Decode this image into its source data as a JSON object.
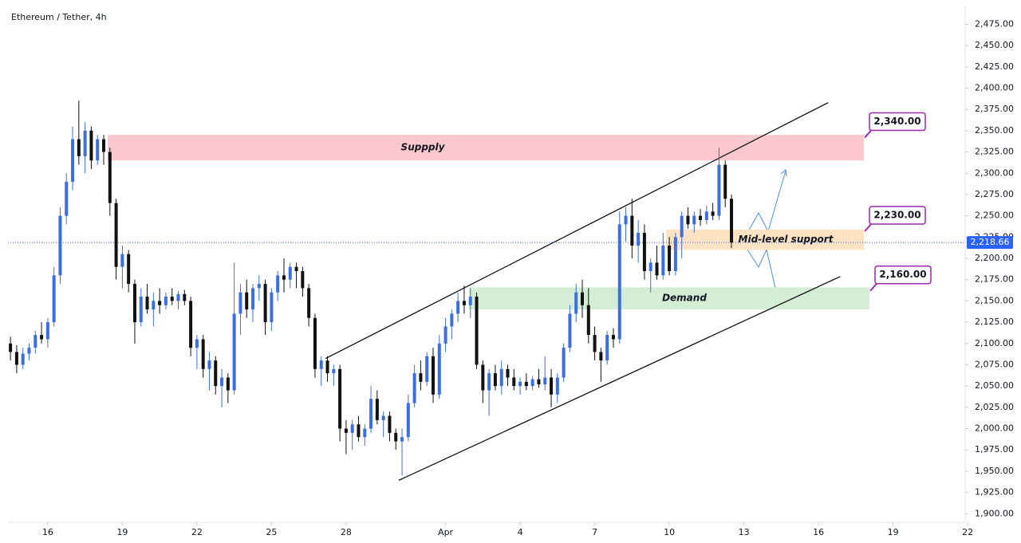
{
  "chart_data": {
    "type": "candlestick",
    "title": "Ethereum / Tether, 4h",
    "up_color": "#3b6fe0",
    "down_color": "#111111",
    "xlim": [
      14.4,
      52.9
    ],
    "ylim": [
      1890,
      2496
    ],
    "xticks": [
      {
        "value": 16,
        "label": "16"
      },
      {
        "value": 19,
        "label": "19"
      },
      {
        "value": 22,
        "label": "22"
      },
      {
        "value": 25,
        "label": "25"
      },
      {
        "value": 28,
        "label": "28"
      },
      {
        "value": 32,
        "label": "Apr"
      },
      {
        "value": 35,
        "label": "4"
      },
      {
        "value": 38,
        "label": "7"
      },
      {
        "value": 41,
        "label": "10"
      },
      {
        "value": 44,
        "label": "13"
      },
      {
        "value": 47,
        "label": "16"
      },
      {
        "value": 50,
        "label": "19"
      },
      {
        "value": 53,
        "label": "22"
      }
    ],
    "yticks": [
      {
        "value": 1900,
        "label": "1,900.00"
      },
      {
        "value": 1925,
        "label": "1,925.00"
      },
      {
        "value": 1950,
        "label": "1,950.00"
      },
      {
        "value": 1975,
        "label": "1,975.00"
      },
      {
        "value": 2000,
        "label": "2,000.00"
      },
      {
        "value": 2025,
        "label": "2,025.00"
      },
      {
        "value": 2050,
        "label": "2,050.00"
      },
      {
        "value": 2075,
        "label": "2,075.00"
      },
      {
        "value": 2100,
        "label": "2,100.00"
      },
      {
        "value": 2125,
        "label": "2,125.00"
      },
      {
        "value": 2150,
        "label": "2,150.00"
      },
      {
        "value": 2175,
        "label": "2,175.00"
      },
      {
        "value": 2200,
        "label": "2,200.00"
      },
      {
        "value": 2225,
        "label": "2,225.00"
      },
      {
        "value": 2250,
        "label": "2,250.00"
      },
      {
        "value": 2275,
        "label": "2,275.00"
      },
      {
        "value": 2300,
        "label": "2,300.00"
      },
      {
        "value": 2325,
        "label": "2,325.00"
      },
      {
        "value": 2350,
        "label": "2,350.00"
      },
      {
        "value": 2375,
        "label": "2,375.00"
      },
      {
        "value": 2400,
        "label": "2,400.00"
      },
      {
        "value": 2425,
        "label": "2,425.00"
      },
      {
        "value": 2450,
        "label": "2,450.00"
      },
      {
        "value": 2475,
        "label": "2,475.00"
      }
    ],
    "x": [
      14.5,
      14.75,
      15,
      15.25,
      15.5,
      15.75,
      16,
      16.25,
      16.5,
      16.75,
      17,
      17.25,
      17.5,
      17.75,
      18,
      18.25,
      18.5,
      18.75,
      19,
      19.25,
      19.5,
      19.75,
      20,
      20.25,
      20.5,
      20.75,
      21,
      21.25,
      21.5,
      21.75,
      22,
      22.25,
      22.5,
      22.75,
      23,
      23.25,
      23.5,
      23.75,
      24,
      24.25,
      24.5,
      24.75,
      25,
      25.25,
      25.5,
      25.75,
      26,
      26.25,
      26.5,
      26.75,
      27,
      27.25,
      27.5,
      27.75,
      28,
      28.25,
      28.5,
      28.75,
      29,
      29.25,
      29.5,
      29.75,
      30,
      30.25,
      30.5,
      30.75,
      31,
      31.25,
      31.5,
      31.75,
      32,
      32.25,
      32.5,
      32.75,
      33,
      33.25,
      33.5,
      33.75,
      34,
      34.25,
      34.5,
      34.75,
      35,
      35.25,
      35.5,
      35.75,
      36,
      36.25,
      36.5,
      36.75,
      37,
      37.25,
      37.5,
      37.75,
      38,
      38.25,
      38.5,
      38.75,
      39,
      39.25,
      39.5,
      39.75,
      40,
      40.25,
      40.5,
      40.75,
      41,
      41.25,
      41.5,
      41.75,
      42,
      42.25,
      42.5,
      42.75,
      43,
      43.25,
      43.5
    ],
    "candles": [
      [
        2100,
        2108,
        2080,
        2090
      ],
      [
        2090,
        2098,
        2065,
        2075
      ],
      [
        2075,
        2095,
        2070,
        2088
      ],
      [
        2088,
        2100,
        2080,
        2095
      ],
      [
        2095,
        2115,
        2088,
        2110
      ],
      [
        2110,
        2125,
        2100,
        2105
      ],
      [
        2105,
        2130,
        2095,
        2125
      ],
      [
        2125,
        2190,
        2120,
        2180
      ],
      [
        2180,
        2260,
        2170,
        2250
      ],
      [
        2250,
        2300,
        2240,
        2290
      ],
      [
        2290,
        2355,
        2280,
        2340
      ],
      [
        2340,
        2385,
        2310,
        2320
      ],
      [
        2320,
        2360,
        2300,
        2350
      ],
      [
        2350,
        2355,
        2305,
        2315
      ],
      [
        2315,
        2345,
        2310,
        2340
      ],
      [
        2340,
        2345,
        2310,
        2325
      ],
      [
        2325,
        2330,
        2250,
        2265
      ],
      [
        2265,
        2270,
        2175,
        2190
      ],
      [
        2190,
        2215,
        2165,
        2205
      ],
      [
        2205,
        2210,
        2160,
        2170
      ],
      [
        2170,
        2175,
        2100,
        2125
      ],
      [
        2125,
        2165,
        2120,
        2155
      ],
      [
        2155,
        2170,
        2135,
        2140
      ],
      [
        2140,
        2160,
        2120,
        2150
      ],
      [
        2150,
        2165,
        2135,
        2145
      ],
      [
        2145,
        2160,
        2140,
        2155
      ],
      [
        2155,
        2165,
        2145,
        2150
      ],
      [
        2150,
        2162,
        2140,
        2158
      ],
      [
        2158,
        2163,
        2145,
        2150
      ],
      [
        2150,
        2155,
        2085,
        2095
      ],
      [
        2095,
        2110,
        2070,
        2105
      ],
      [
        2105,
        2110,
        2060,
        2070
      ],
      [
        2070,
        2090,
        2045,
        2080
      ],
      [
        2080,
        2085,
        2040,
        2050
      ],
      [
        2050,
        2070,
        2025,
        2060
      ],
      [
        2060,
        2065,
        2030,
        2045
      ],
      [
        2045,
        2195,
        2040,
        2135
      ],
      [
        2135,
        2170,
        2110,
        2160
      ],
      [
        2160,
        2175,
        2130,
        2140
      ],
      [
        2140,
        2170,
        2125,
        2165
      ],
      [
        2165,
        2180,
        2150,
        2170
      ],
      [
        2170,
        2175,
        2110,
        2125
      ],
      [
        2125,
        2165,
        2115,
        2160
      ],
      [
        2160,
        2185,
        2150,
        2180
      ],
      [
        2180,
        2200,
        2160,
        2175
      ],
      [
        2175,
        2195,
        2165,
        2190
      ],
      [
        2190,
        2195,
        2165,
        2185
      ],
      [
        2185,
        2190,
        2155,
        2165
      ],
      [
        2165,
        2170,
        2120,
        2130
      ],
      [
        2130,
        2135,
        2060,
        2070
      ],
      [
        2070,
        2085,
        2050,
        2080
      ],
      [
        2080,
        2085,
        2055,
        2065
      ],
      [
        2065,
        2075,
        2050,
        2070
      ],
      [
        2070,
        2075,
        1985,
        2000
      ],
      [
        2000,
        2010,
        1970,
        1995
      ],
      [
        1995,
        2010,
        1975,
        2005
      ],
      [
        2005,
        2015,
        1985,
        1990
      ],
      [
        1990,
        2005,
        1980,
        2000
      ],
      [
        2000,
        2050,
        1995,
        2035
      ],
      [
        2035,
        2045,
        2005,
        2010
      ],
      [
        2010,
        2020,
        1990,
        2015
      ],
      [
        2015,
        2020,
        1985,
        1995
      ],
      [
        1995,
        2000,
        1975,
        1985
      ],
      [
        1985,
        2000,
        1945,
        1990
      ],
      [
        1990,
        2040,
        1985,
        2030
      ],
      [
        2030,
        2075,
        2025,
        2065
      ],
      [
        2065,
        2080,
        2045,
        2055
      ],
      [
        2055,
        2090,
        2050,
        2085
      ],
      [
        2085,
        2095,
        2030,
        2040
      ],
      [
        2040,
        2110,
        2035,
        2100
      ],
      [
        2100,
        2130,
        2090,
        2120
      ],
      [
        2120,
        2140,
        2105,
        2135
      ],
      [
        2135,
        2160,
        2125,
        2150
      ],
      [
        2150,
        2168,
        2135,
        2145
      ],
      [
        2145,
        2165,
        2130,
        2155
      ],
      [
        2155,
        2160,
        2070,
        2075
      ],
      [
        2075,
        2080,
        2030,
        2045
      ],
      [
        2045,
        2070,
        2015,
        2065
      ],
      [
        2065,
        2075,
        2045,
        2050
      ],
      [
        2050,
        2080,
        2040,
        2070
      ],
      [
        2070,
        2075,
        2050,
        2060
      ],
      [
        2060,
        2070,
        2045,
        2050
      ],
      [
        2050,
        2060,
        2040,
        2055
      ],
      [
        2055,
        2065,
        2045,
        2050
      ],
      [
        2050,
        2062,
        2045,
        2058
      ],
      [
        2058,
        2070,
        2048,
        2052
      ],
      [
        2052,
        2085,
        2045,
        2060
      ],
      [
        2060,
        2070,
        2025,
        2040
      ],
      [
        2040,
        2065,
        2030,
        2060
      ],
      [
        2060,
        2100,
        2055,
        2095
      ],
      [
        2095,
        2145,
        2090,
        2135
      ],
      [
        2135,
        2170,
        2125,
        2160
      ],
      [
        2160,
        2175,
        2130,
        2145
      ],
      [
        2145,
        2165,
        2100,
        2110
      ],
      [
        2110,
        2120,
        2080,
        2090
      ],
      [
        2090,
        2095,
        2055,
        2080
      ],
      [
        2080,
        2115,
        2075,
        2110
      ],
      [
        2110,
        2118,
        2095,
        2105
      ],
      [
        2105,
        2255,
        2100,
        2240
      ],
      [
        2240,
        2260,
        2220,
        2250
      ],
      [
        2250,
        2270,
        2200,
        2215
      ],
      [
        2215,
        2245,
        2195,
        2230
      ],
      [
        2230,
        2240,
        2175,
        2185
      ],
      [
        2185,
        2200,
        2160,
        2195
      ],
      [
        2195,
        2215,
        2175,
        2180
      ],
      [
        2180,
        2230,
        2175,
        2215
      ],
      [
        2215,
        2225,
        2180,
        2185
      ],
      [
        2185,
        2230,
        2180,
        2225
      ],
      [
        2225,
        2255,
        2200,
        2250
      ],
      [
        2250,
        2260,
        2235,
        2240
      ],
      [
        2240,
        2255,
        2230,
        2250
      ],
      [
        2250,
        2258,
        2238,
        2245
      ],
      [
        2245,
        2262,
        2240,
        2255
      ],
      [
        2255,
        2265,
        2245,
        2250
      ],
      [
        2250,
        2330,
        2245,
        2310
      ],
      [
        2310,
        2315,
        2260,
        2270
      ],
      [
        2270,
        2275,
        2212,
        2218.66
      ]
    ],
    "zones": [
      {
        "label": "Suppply",
        "x": [
          18.41,
          48.83
        ],
        "y": [
          2315,
          2345
        ],
        "color": "#fbc9cd"
      },
      {
        "label": "Mid-level support",
        "x": [
          40.87,
          48.83
        ],
        "y": [
          2210,
          2234
        ],
        "color": "#fde3c2"
      },
      {
        "label": "Demand",
        "x": [
          32.94,
          49.05
        ],
        "y": [
          2140,
          2166
        ],
        "color": "#d4edd5"
      }
    ],
    "channel": [
      {
        "x": [
          27.17,
          47.39
        ],
        "y": [
          2082.3,
          2383
        ]
      },
      {
        "x": [
          30.12,
          47.87
        ],
        "y": [
          1939.3,
          2178.6
        ]
      }
    ],
    "levels": [
      {
        "value": 2340,
        "label": "2,340.00"
      },
      {
        "value": 2230,
        "label": "2,230.00"
      },
      {
        "value": 2160,
        "label": "2,160.00"
      }
    ],
    "level_color": "#9c27b0",
    "last_price": {
      "value": 2218.66,
      "label": "2,218.66",
      "color": "#2962ff"
    }
  }
}
